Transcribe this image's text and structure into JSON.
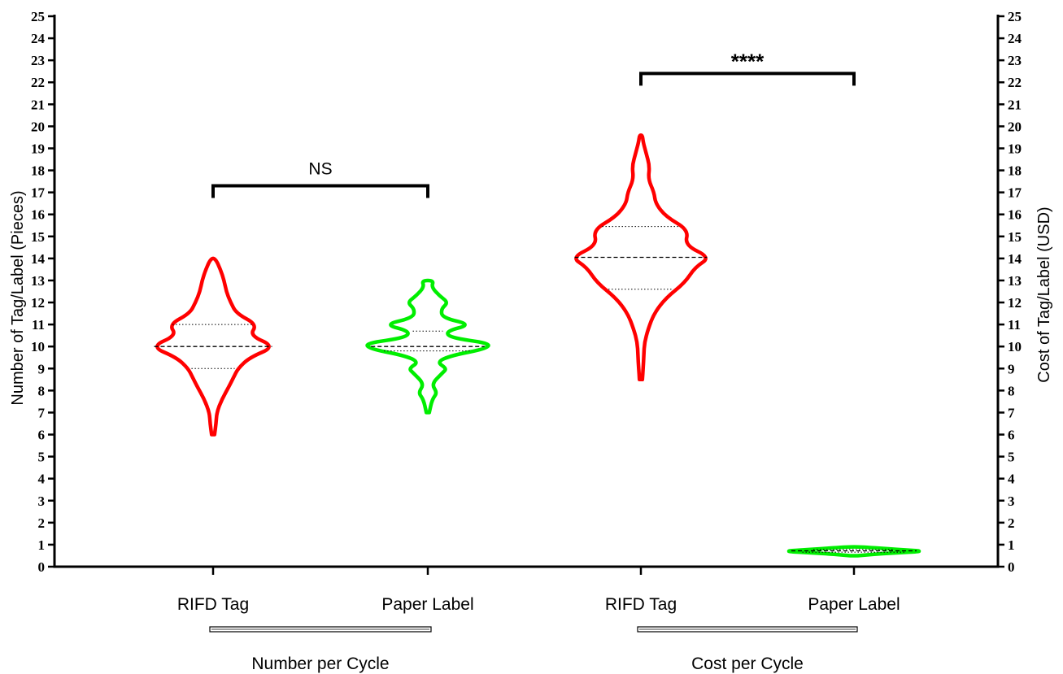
{
  "chart_data": {
    "type": "violin",
    "y_left": {
      "label": "Number of Tag/Label (Pieces)",
      "ylim": [
        0,
        25
      ],
      "ticks": [
        0,
        1,
        2,
        3,
        4,
        5,
        6,
        7,
        8,
        9,
        10,
        11,
        12,
        13,
        14,
        15,
        16,
        17,
        18,
        19,
        20,
        21,
        22,
        23,
        24,
        25
      ]
    },
    "y_right": {
      "label": "Cost of Tag/Label (USD)",
      "ylim": [
        0,
        25
      ],
      "ticks": [
        0,
        1,
        2,
        3,
        4,
        5,
        6,
        7,
        8,
        9,
        10,
        11,
        12,
        13,
        14,
        15,
        16,
        17,
        18,
        19,
        20,
        21,
        22,
        23,
        24,
        25
      ]
    },
    "groups": [
      {
        "name": "Number per Cycle",
        "axis": "left",
        "members": [
          0,
          1
        ]
      },
      {
        "name": "Cost per Cycle",
        "axis": "right",
        "members": [
          2,
          3
        ]
      }
    ],
    "violins": [
      {
        "category": "RIFD Tag",
        "color": "#ff0000",
        "min": 6,
        "max": 14,
        "median": 10,
        "q1": 9,
        "q3": 11,
        "profile": [
          [
            6,
            0.02
          ],
          [
            6.5,
            0.04
          ],
          [
            7,
            0.05
          ],
          [
            7.6,
            0.12
          ],
          [
            8.2,
            0.22
          ],
          [
            8.6,
            0.28
          ],
          [
            9,
            0.34
          ],
          [
            9.5,
            0.5
          ],
          [
            10,
            0.85
          ],
          [
            10.5,
            0.5
          ],
          [
            11,
            0.6
          ],
          [
            11.5,
            0.32
          ],
          [
            12,
            0.24
          ],
          [
            12.5,
            0.18
          ],
          [
            13,
            0.15
          ],
          [
            13.5,
            0.1
          ],
          [
            14,
            0.03
          ]
        ]
      },
      {
        "category": "Paper Label",
        "color": "#00ee00",
        "min": 7,
        "max": 13,
        "median": 10,
        "q1": 9.8,
        "q3": 10.7,
        "profile": [
          [
            7,
            0.02
          ],
          [
            7.6,
            0.06
          ],
          [
            7.9,
            0.13
          ],
          [
            8.3,
            0.05
          ],
          [
            8.8,
            0.2
          ],
          [
            9,
            0.26
          ],
          [
            9.3,
            0.12
          ],
          [
            9.6,
            0.33
          ],
          [
            9.9,
            0.8
          ],
          [
            10.15,
            0.85
          ],
          [
            10.4,
            0.3
          ],
          [
            10.7,
            0.25
          ],
          [
            11,
            0.6
          ],
          [
            11.3,
            0.2
          ],
          [
            11.7,
            0.18
          ],
          [
            12,
            0.28
          ],
          [
            12.3,
            0.16
          ],
          [
            12.7,
            0.05
          ],
          [
            13,
            0.08
          ]
        ]
      },
      {
        "category": "RIFD Tag",
        "color": "#ff0000",
        "min": 8.5,
        "max": 19.6,
        "median": 14.05,
        "q1": 12.6,
        "q3": 15.45,
        "profile": [
          [
            8.5,
            0.02
          ],
          [
            9,
            0.03
          ],
          [
            9.6,
            0.04
          ],
          [
            10.2,
            0.05
          ],
          [
            10.8,
            0.1
          ],
          [
            11.5,
            0.18
          ],
          [
            12.2,
            0.34
          ],
          [
            12.9,
            0.6
          ],
          [
            13.6,
            0.74
          ],
          [
            14.05,
            0.95
          ],
          [
            14.6,
            0.6
          ],
          [
            15.3,
            0.65
          ],
          [
            15.9,
            0.34
          ],
          [
            16.5,
            0.2
          ],
          [
            17,
            0.18
          ],
          [
            17.6,
            0.1
          ],
          [
            18.2,
            0.12
          ],
          [
            18.8,
            0.07
          ],
          [
            19.3,
            0.03
          ],
          [
            19.6,
            0.02
          ]
        ]
      },
      {
        "category": "Paper Label",
        "color": "#00ee00",
        "min": 0.5,
        "max": 0.9,
        "median": 0.72,
        "q1": 0.66,
        "q3": 0.78,
        "profile": [
          [
            0.5,
            0.05
          ],
          [
            0.62,
            0.5
          ],
          [
            0.7,
            1.0
          ],
          [
            0.78,
            0.6
          ],
          [
            0.9,
            0.1
          ]
        ]
      }
    ],
    "comparisons": [
      {
        "between": [
          0,
          1
        ],
        "label": "NS",
        "y": 17.3
      },
      {
        "between": [
          2,
          3
        ],
        "label": "****",
        "y": 22.4
      }
    ]
  }
}
